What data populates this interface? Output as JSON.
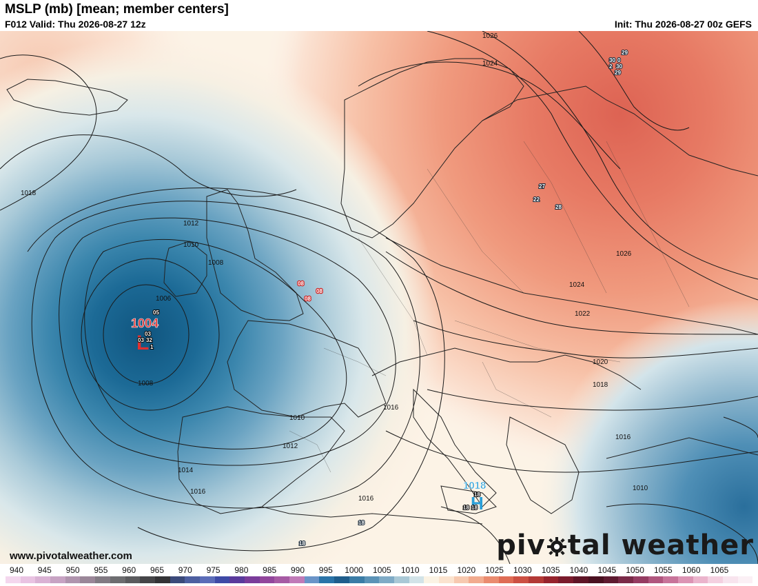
{
  "header": {
    "title": "MSLP (mb) [mean; member centers]",
    "valid": "F012 Valid: Thu 2026-08-27 12z",
    "init": "Init: Thu 2026-08-27 00z GEFS"
  },
  "footer": {
    "website": "www.pivotalweather.com",
    "brand_left": "piv",
    "brand_right": "tal weather"
  },
  "colorbar": {
    "ticks": [
      "940",
      "945",
      "950",
      "955",
      "960",
      "965",
      "970",
      "975",
      "980",
      "985",
      "990",
      "995",
      "1000",
      "1005",
      "1010",
      "1015",
      "1020",
      "1025",
      "1030",
      "1035",
      "1040",
      "1045",
      "1050",
      "1055",
      "1060",
      "1065"
    ],
    "colors": [
      "#f4d7ee",
      "#e9c3e2",
      "#dab2d4",
      "#c7a3c3",
      "#b094ae",
      "#9a8698",
      "#827a83",
      "#6d6d70",
      "#5b5b5e",
      "#454548",
      "#333336",
      "#3b4a7a",
      "#4d5fa0",
      "#5b6cb8",
      "#3e4aa6",
      "#5a3a9c",
      "#7a3c9a",
      "#92469c",
      "#a65aa4",
      "#c07ab8",
      "#6a94c8",
      "#2a73a8",
      "#1f5d8c",
      "#3a7ca6",
      "#5b93b7",
      "#7fabc6",
      "#a9c8d6",
      "#d2e3e8",
      "#fbf3e4",
      "#fbe3cf",
      "#f7c9b0",
      "#f2ab8f",
      "#ea8b6f",
      "#df6c55",
      "#cc5043",
      "#b33936",
      "#96232d",
      "#7a1b2c",
      "#5e1426",
      "#4a1020",
      "#5e1a30",
      "#7a2a48",
      "#953c62",
      "#b0567e",
      "#c8749a",
      "#dc94b4",
      "#ebb4cc",
      "#f4d0e0",
      "#f8e4ee",
      "#fbf0f5"
    ]
  },
  "contour_labels": [
    {
      "t": "1026"
    },
    {
      "t": "1024"
    },
    {
      "t": "1018"
    },
    {
      "t": "1012"
    },
    {
      "t": "1010"
    },
    {
      "t": "1008"
    },
    {
      "t": "1006"
    },
    {
      "t": "1008"
    },
    {
      "t": "1010"
    },
    {
      "t": "1012"
    },
    {
      "t": "1014"
    },
    {
      "t": "1016"
    },
    {
      "t": "1016"
    },
    {
      "t": "1016"
    },
    {
      "t": "1026"
    },
    {
      "t": "1024"
    },
    {
      "t": "1022"
    },
    {
      "t": "1020"
    },
    {
      "t": "1018"
    },
    {
      "t": "1016"
    },
    {
      "t": "1010"
    }
  ],
  "centers": {
    "low_atlantic": {
      "value": "1004",
      "letter": "L",
      "members": [
        "05",
        "03",
        "03",
        "32",
        "1"
      ]
    },
    "high_sicily": {
      "value": "1018",
      "letter": "H",
      "members": [
        "18",
        "18",
        "18"
      ]
    },
    "low_channel": {
      "members": [
        "08",
        "08",
        "08"
      ]
    },
    "high_kola": {
      "members": [
        "29",
        "30",
        "0",
        "2",
        "30",
        "29"
      ]
    },
    "high_baltic": {
      "members": [
        "27",
        "22",
        "28"
      ]
    },
    "africa": {
      "members": [
        "18",
        "18"
      ]
    }
  }
}
